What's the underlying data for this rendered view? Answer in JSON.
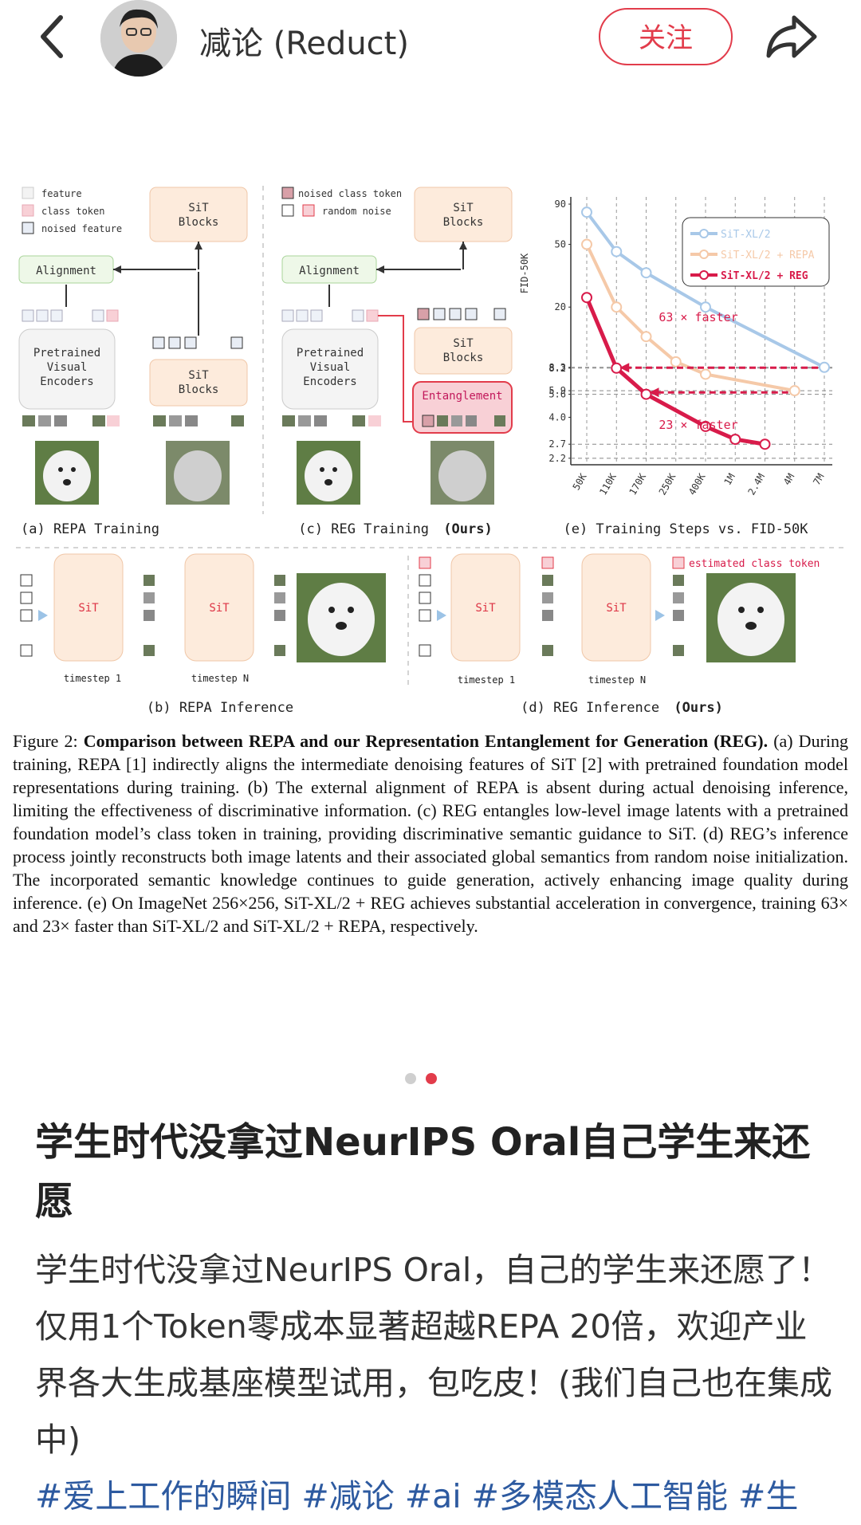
{
  "header": {
    "username": "减论 (Reduct)",
    "follow_label": "关注"
  },
  "figure": {
    "legend_a": [
      "feature",
      "class token",
      "noised feature"
    ],
    "legend_c": [
      "noised class token",
      "random noise"
    ],
    "alignment": "Alignment",
    "pretrained_encoders": [
      "Pretrained",
      "Visual",
      "Encoders"
    ],
    "sit_blocks": [
      "SiT",
      "Blocks"
    ],
    "entanglement": "Entanglement",
    "sit": "SiT",
    "timestep_1": "timestep 1",
    "timestep_n": "timestep N",
    "estimated_class_token": "estimated class token",
    "caption_a": "(a) REPA Training",
    "caption_c": "(c) REG Training",
    "caption_c_bold": "(Ours)",
    "caption_e": "(e) Training Steps vs. FID-50K",
    "caption_b": "(b) REPA Inference",
    "caption_d": "(d) REG Inference",
    "caption_d_bold": "(Ours)",
    "caption_text_lead": "Figure 2:",
    "caption_text_bold": "Comparison between REPA and our Representation Entanglement for Generation (REG).",
    "caption_text_body": "(a) During training, REPA [1] indirectly aligns the intermediate denoising features of SiT [2] with pretrained foundation model representations during training. (b) The external alignment of REPA is absent during actual denoising inference, limiting the effectiveness of discriminative information. (c) REG entangles low-level image latents with a pretrained foundation model’s class token in training, providing discriminative semantic guidance to SiT. (d) REG’s inference process jointly reconstructs both image latents and their associated global semantics from random noise initialization. The incorporated semantic knowledge continues to guide generation, actively enhancing image quality during inference. (e) On ImageNet 256×256, SiT-XL/2 + REG achieves substantial acceleration in convergence, training 63× and 23× faster than SiT-XL/2 and SiT-XL/2 + REPA, respectively."
  },
  "chart_data": {
    "type": "line",
    "xlabel": "",
    "ylabel": "FID-50K",
    "x_ticks": [
      "50K",
      "110K",
      "170K",
      "250K",
      "400K",
      "1M",
      "2.4M",
      "4M",
      "7M"
    ],
    "y_ticks": [
      "90",
      "50",
      "20",
      "8.3",
      "8.2",
      "5.9",
      "5.6",
      "4.0",
      "2.7",
      "2.2"
    ],
    "y_scale": "log",
    "grid": "dashed vertical",
    "legend_position": "top-right",
    "series": [
      {
        "name": "SiT-XL/2",
        "color": "#a8c8e8",
        "x": [
          "50K",
          "110K",
          "170K",
          "400K",
          "7M"
        ],
        "values": [
          80,
          45,
          33,
          20,
          8.3
        ]
      },
      {
        "name": "SiT-XL/2 + REPA",
        "color": "#f5c9a8",
        "x": [
          "50K",
          "110K",
          "170K",
          "250K",
          "400K",
          "4M"
        ],
        "values": [
          50,
          20,
          13,
          9.0,
          7.5,
          5.9
        ]
      },
      {
        "name": "SiT-XL/2 + REG",
        "color": "#d81b4a",
        "x": [
          "50K",
          "110K",
          "170K",
          "400K",
          "1M",
          "2.4M"
        ],
        "values": [
          23,
          8.2,
          5.6,
          3.5,
          2.9,
          2.7
        ]
      }
    ],
    "annotations": [
      "63 × faster",
      "23 × faster"
    ]
  },
  "pager": {
    "count": 2,
    "active": 1,
    "active_color": "#e23c4b",
    "inactive_color": "#cfcfcf"
  },
  "post": {
    "title": "学生时代没拿过NeurIPS Oral自己学生来还愿",
    "body": "学生时代没拿过NeurIPS Oral，自己的学生来还愿了！仅用1个Token零成本显著超越REPA 20倍，欢迎产业界各大生成基座模型试用，包吃皮！(我们自己也在集成中)",
    "tags": "#爱上工作的瞬间 #减论 #ai #多模态人工智能 #生"
  }
}
